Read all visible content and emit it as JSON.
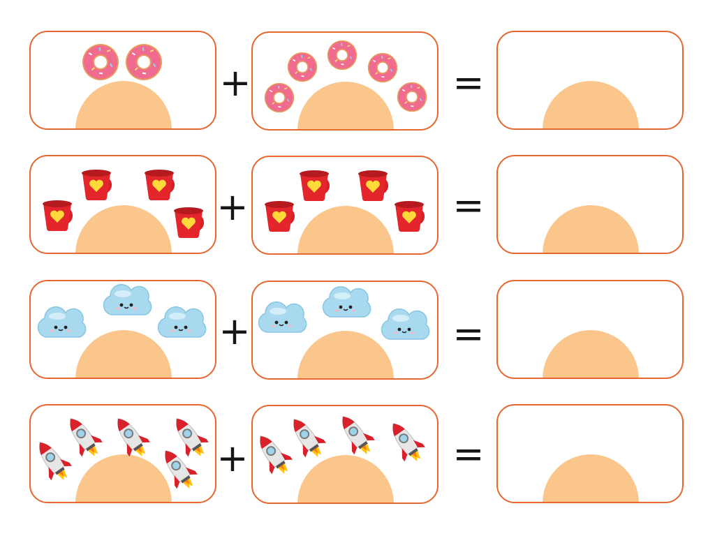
{
  "colors": {
    "border": "#e5662e",
    "mound": "#fbc68b",
    "symbol": "#151515"
  },
  "rows": [
    {
      "object": "donut-icon",
      "plus": "+",
      "equals": "=",
      "left_count": 2,
      "right_count": 5
    },
    {
      "object": "cup-icon",
      "plus": "+",
      "equals": "=",
      "left_count": 4,
      "right_count": 4
    },
    {
      "object": "cloud-icon",
      "plus": "+",
      "equals": "=",
      "left_count": 3,
      "right_count": 3
    },
    {
      "object": "rocket-icon",
      "plus": "+",
      "equals": "=",
      "left_count": 5,
      "right_count": 4
    }
  ]
}
